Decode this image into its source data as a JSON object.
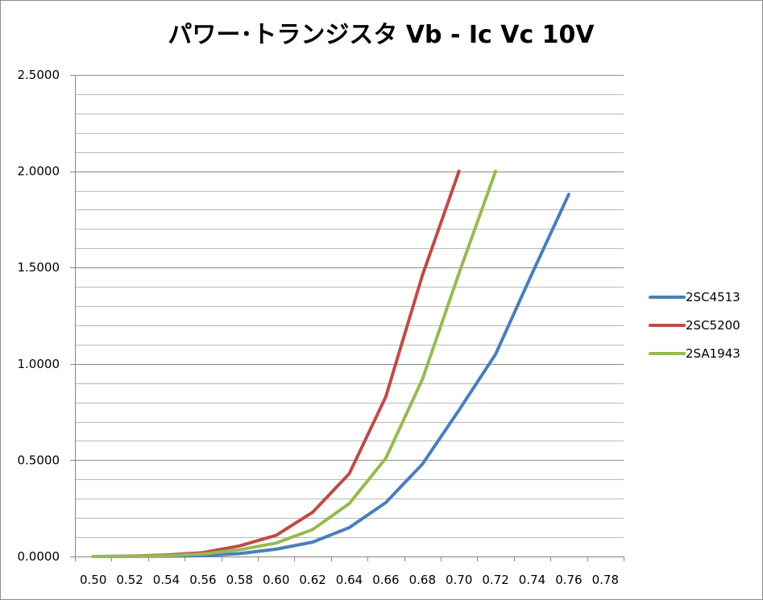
{
  "chart_data": {
    "type": "line",
    "title": "パワー･トランジスタ Vb - Ic Vc 10V",
    "xlabel": "",
    "ylabel": "",
    "categories": [
      "0.50",
      "0.52",
      "0.54",
      "0.56",
      "0.58",
      "0.60",
      "0.62",
      "0.64",
      "0.66",
      "0.68",
      "0.70",
      "0.72",
      "0.74",
      "0.76",
      "0.78"
    ],
    "ylim": [
      0,
      2.5
    ],
    "y_ticks": [
      "0.0000",
      "0.5000",
      "1.0000",
      "1.5000",
      "2.0000",
      "2.5000"
    ],
    "grid": "horizontal, major and minor",
    "legend_position": "right",
    "series": [
      {
        "name": "2SC4513",
        "color": "#4a7ebb",
        "values": [
          0.0,
          0.0005,
          0.0015,
          0.004,
          0.015,
          0.038,
          0.075,
          0.15,
          0.28,
          0.48,
          0.76,
          1.05,
          1.47,
          1.88,
          null
        ]
      },
      {
        "name": "2SC5200",
        "color": "#be4b48",
        "values": [
          0.0,
          0.002,
          0.008,
          0.02,
          0.055,
          0.11,
          0.23,
          0.43,
          0.83,
          1.46,
          2.0,
          null,
          null,
          null,
          null
        ]
      },
      {
        "name": "2SA1943",
        "color": "#98b954",
        "values": [
          0.0,
          0.001,
          0.004,
          0.013,
          0.035,
          0.07,
          0.14,
          0.275,
          0.51,
          0.92,
          1.47,
          2.0,
          null,
          null,
          null
        ]
      }
    ]
  }
}
